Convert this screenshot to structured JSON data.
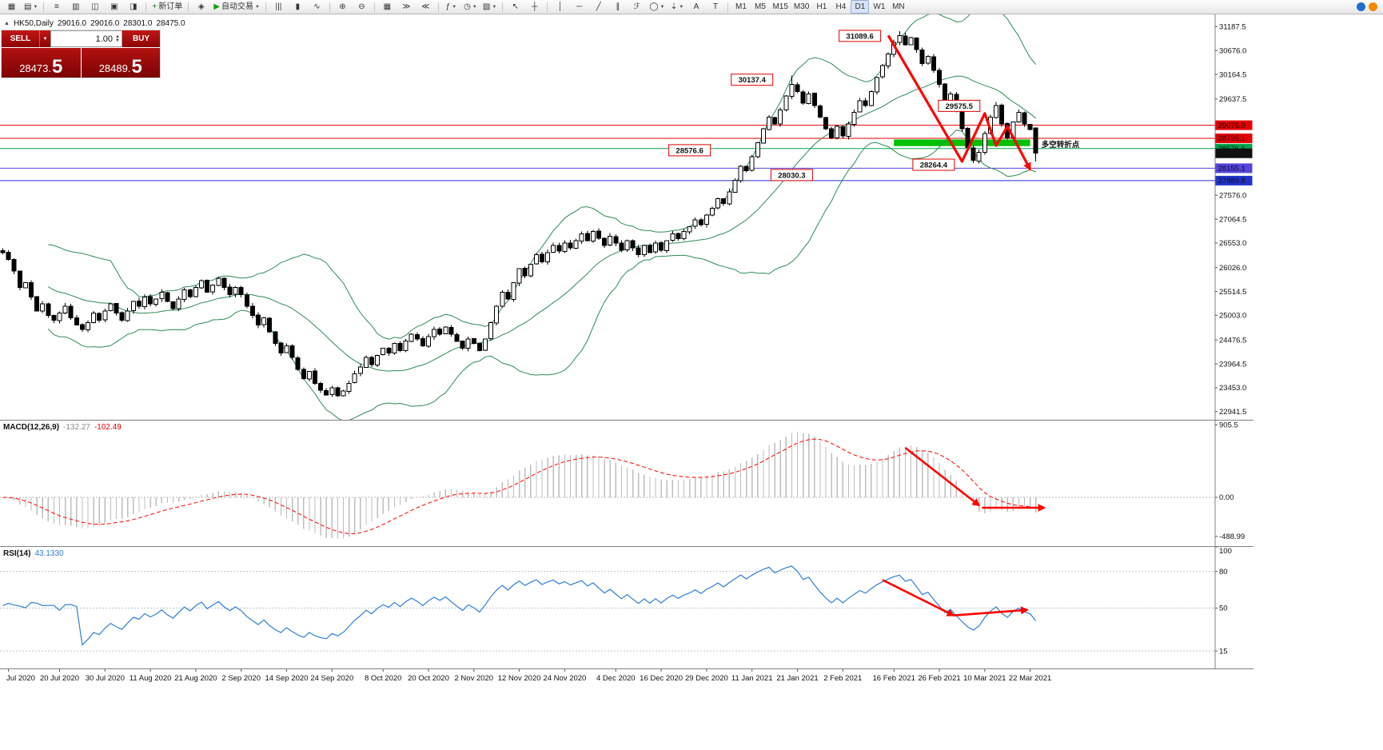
{
  "toolbar": {
    "items": [
      {
        "type": "button",
        "name": "new-chart-button",
        "glyph": "▦"
      },
      {
        "type": "button",
        "name": "profiles-button",
        "glyph": "▤",
        "caret": true
      },
      {
        "type": "sep"
      },
      {
        "type": "button",
        "name": "market-watch-button",
        "glyph": "≡"
      },
      {
        "type": "button",
        "name": "data-window-button",
        "glyph": "▥"
      },
      {
        "type": "button",
        "name": "navigator-button",
        "glyph": "◫"
      },
      {
        "type": "button",
        "name": "terminal-button",
        "glyph": "▣"
      },
      {
        "type": "button",
        "name": "strategy-tester-button",
        "glyph": "◨"
      },
      {
        "type": "sep"
      },
      {
        "type": "button",
        "name": "new-order-button",
        "glyph": "+",
        "glyph_color": "#0a7a0a",
        "label": "新订单"
      },
      {
        "type": "sep"
      },
      {
        "type": "button",
        "name": "metaeditor-button",
        "glyph": "◈"
      },
      {
        "type": "button",
        "name": "auto-trading-button",
        "glyph": "▶",
        "glyph_color": "#13a013",
        "label": "自动交易",
        "caret": true
      },
      {
        "type": "sep"
      },
      {
        "type": "button",
        "name": "bars-chart-button",
        "glyph": "|||"
      },
      {
        "type": "button",
        "name": "candlestick-chart-button",
        "glyph": "▮"
      },
      {
        "type": "button",
        "name": "line-chart-button",
        "glyph": "∿"
      },
      {
        "type": "sep"
      },
      {
        "type": "button",
        "name": "zoom-in-button",
        "glyph": "⊕"
      },
      {
        "type": "button",
        "name": "zoom-out-button",
        "glyph": "⊖"
      },
      {
        "type": "sep"
      },
      {
        "type": "button",
        "name": "tile-windows-button",
        "glyph": "▦"
      },
      {
        "type": "button",
        "name": "auto-scroll-button",
        "glyph": "≫"
      },
      {
        "type": "button",
        "name": "chart-shift-button",
        "glyph": "≪"
      },
      {
        "type": "sep"
      },
      {
        "type": "button",
        "name": "indicators-button",
        "glyph": "ƒ",
        "caret": true
      },
      {
        "type": "button",
        "name": "periods-button",
        "glyph": "◷",
        "caret": true
      },
      {
        "type": "button",
        "name": "templates-button",
        "glyph": "▧",
        "caret": true
      },
      {
        "type": "sep"
      },
      {
        "type": "button",
        "name": "cursor-button",
        "glyph": "↖"
      },
      {
        "type": "button",
        "name": "crosshair-button",
        "glyph": "┼"
      },
      {
        "type": "sep"
      },
      {
        "type": "button",
        "name": "vertical-line-button",
        "glyph": "│"
      },
      {
        "type": "button",
        "name": "horizontal-line-button",
        "glyph": "─"
      },
      {
        "type": "button",
        "name": "trendline-button",
        "glyph": "╱"
      },
      {
        "type": "button",
        "name": "equidistant-channel-button",
        "glyph": "∥"
      },
      {
        "type": "button",
        "name": "fibonacci-button",
        "glyph": "ℱ"
      },
      {
        "type": "button",
        "name": "shapes-button",
        "glyph": "◯",
        "caret": true
      },
      {
        "type": "button",
        "name": "arrows-button",
        "glyph": "⇣",
        "caret": true
      },
      {
        "type": "button",
        "name": "text-button",
        "glyph": "A"
      },
      {
        "type": "button",
        "name": "text-label-button",
        "glyph": "T"
      },
      {
        "type": "sep"
      },
      {
        "type": "button",
        "name": "timeframe-m1-button",
        "label": "M1"
      },
      {
        "type": "button",
        "name": "timeframe-m5-button",
        "label": "M5"
      },
      {
        "type": "button",
        "name": "timeframe-m15-button",
        "label": "M15"
      },
      {
        "type": "button",
        "name": "timeframe-m30-button",
        "label": "M30"
      },
      {
        "type": "button",
        "name": "timeframe-h1-button",
        "label": "H1"
      },
      {
        "type": "button",
        "name": "timeframe-h4-button",
        "label": "H4"
      },
      {
        "type": "button",
        "name": "timeframe-d1-button",
        "label": "D1",
        "active": true
      },
      {
        "type": "button",
        "name": "timeframe-w1-button",
        "label": "W1"
      },
      {
        "type": "button",
        "name": "timeframe-mn-button",
        "label": "MN"
      }
    ],
    "right_items": [
      {
        "name": "community-icon-button",
        "color": "#1f6fd0"
      },
      {
        "name": "notifications-icon-button",
        "color": "#f08a00"
      }
    ]
  },
  "symbol_line": {
    "icon": "▲",
    "text": "HK50,Daily",
    "open": "29016.0",
    "high": "29016.0",
    "low": "28301.0",
    "close": "28475.0"
  },
  "one_click": {
    "sell_label": "SELL",
    "buy_label": "BUY",
    "volume": "1.00",
    "sell_price_main": "28473.",
    "sell_price_big": "5",
    "buy_price_main": "28489.",
    "buy_price_big": "5"
  },
  "panels": {
    "macd": {
      "name": "MACD(12,26,9)",
      "value_main": "-132.27",
      "value_signal": "-102.49"
    },
    "rsi": {
      "name": "RSI(14)",
      "value": "43.1330"
    }
  },
  "chart_data": {
    "type": "candlestick",
    "symbol": "HK50",
    "timeframe": "Daily",
    "ohlc_current": {
      "open": 29016.0,
      "high": 29016.0,
      "low": 28301.0,
      "close": 28475.0
    },
    "closes": [
      26350,
      26200,
      25950,
      25600,
      25700,
      25400,
      25100,
      25250,
      25000,
      24900,
      25050,
      25200,
      24950,
      24800,
      24700,
      24850,
      25050,
      24900,
      25100,
      25250,
      25050,
      24900,
      25100,
      25300,
      25200,
      25400,
      25250,
      25350,
      25500,
      25300,
      25150,
      25350,
      25550,
      25400,
      25600,
      25750,
      25500,
      25650,
      25800,
      25600,
      25450,
      25600,
      25450,
      25200,
      25000,
      24800,
      24950,
      24650,
      24400,
      24200,
      24350,
      24100,
      23850,
      23650,
      23800,
      23550,
      23400,
      23300,
      23450,
      23280,
      23380,
      23550,
      23750,
      23900,
      24100,
      23950,
      24150,
      24300,
      24200,
      24400,
      24250,
      24450,
      24600,
      24500,
      24350,
      24550,
      24700,
      24600,
      24750,
      24600,
      24450,
      24300,
      24500,
      24400,
      24250,
      24500,
      24850,
      25200,
      25500,
      25350,
      25700,
      26000,
      25850,
      26100,
      26300,
      26150,
      26350,
      26500,
      26380,
      26550,
      26450,
      26600,
      26750,
      26600,
      26800,
      26650,
      26500,
      26700,
      26550,
      26400,
      26600,
      26450,
      26300,
      26500,
      26350,
      26550,
      26400,
      26600,
      26750,
      26650,
      26800,
      26900,
      27050,
      26950,
      27150,
      27300,
      27500,
      27400,
      27650,
      27900,
      28200,
      28100,
      28400,
      28700,
      29000,
      29250,
      29100,
      29400,
      29700,
      29950,
      29800,
      29550,
      29750,
      29500,
      29250,
      29000,
      28800,
      29050,
      28850,
      29100,
      29350,
      29600,
      29500,
      29800,
      30100,
      30350,
      30600,
      30850,
      31000,
      30800,
      30950,
      30700,
      30400,
      30550,
      30250,
      29950,
      29600,
      29750,
      29400,
      29000,
      28600,
      28320,
      28500,
      28900,
      29250,
      29500,
      29100,
      28800,
      29150,
      29350,
      29100,
      28980,
      28475
    ],
    "overrides": {
      "139": {
        "high": 30137.4
      },
      "158": {
        "high": 31089.6
      },
      "171": {
        "low": 28264.4
      },
      "175": {
        "high": 29575.5
      },
      "182": {
        "open": 29016.0,
        "high": 29016.0,
        "low": 28301.0,
        "close": 28475.0
      }
    },
    "bollinger": {
      "period": 20,
      "deviation": 2,
      "color": "#2e8b57"
    },
    "price_axis": {
      "min_price": 22750,
      "max_price": 31450,
      "ticks": [
        31187.5,
        30676.0,
        30164.5,
        29637.5,
        27576.0,
        27064.5,
        26553.0,
        26026.0,
        25514.5,
        25003.0,
        24476.5,
        23964.5,
        23453.0,
        22941.5
      ]
    },
    "hlines": [
      {
        "price": 29076.0,
        "tag": "29076.0",
        "color": "#e60000"
      },
      {
        "price": 28795.1,
        "tag": "28795.1",
        "color": "#e60000"
      },
      {
        "price": 28576.6,
        "tag": "28576.6",
        "color": "#00a651"
      },
      {
        "price": 28155.1,
        "tag": "28155.1",
        "color": "#5544dd"
      },
      {
        "price": 27889.8,
        "tag": "27889.8",
        "color": "#2233cc"
      }
    ],
    "current_price_tag": {
      "price": 28475.0,
      "text": "28475.0",
      "color": "#111111"
    },
    "green_zone": {
      "from_index": 157,
      "to_index": 181,
      "price_top": 28770,
      "price_bottom": 28630,
      "color": "#00c000"
    },
    "price_labels": [
      {
        "text": "31089.6",
        "index": 151,
        "price": 30990
      },
      {
        "text": "30137.4",
        "index": 132,
        "price": 30050
      },
      {
        "text": "29575.5",
        "index": 168.5,
        "price": 29490
      },
      {
        "text": "28576.6",
        "index": 121,
        "price": 28540
      },
      {
        "text": "28264.4",
        "index": 164,
        "price": 28230
      },
      {
        "text": "28030.3",
        "index": 139,
        "price": 28010
      }
    ],
    "annotation_text": {
      "text": "多空转折点",
      "index": 183,
      "price": 28690,
      "color": "#00b050"
    },
    "main_arrow": {
      "color": "#ff0000",
      "points": [
        [
          156,
          31000
        ],
        [
          169,
          28300
        ],
        [
          173,
          29330
        ],
        [
          175,
          28640
        ],
        [
          177,
          29050
        ],
        [
          181,
          28130
        ]
      ]
    },
    "macd_scale": {
      "min": -620,
      "max": 960
    },
    "macd_axis": [
      {
        "value": 905.5,
        "label": "905.5"
      },
      {
        "value": 0,
        "label": "0.00"
      },
      {
        "value": -488.99,
        "label": "-488.99"
      }
    ],
    "macd_arrows": [
      {
        "points": [
          [
            159,
            620
          ],
          [
            172,
            -100
          ]
        ]
      },
      {
        "points": [
          [
            172.5,
            -130
          ],
          [
            183.5,
            -130
          ]
        ]
      }
    ],
    "rsi_scale": {
      "min": 0,
      "max": 100
    },
    "rsi_axis": [
      {
        "value": 100,
        "label": "100"
      },
      {
        "value": 80,
        "label": "80"
      },
      {
        "value": 50,
        "label": "50"
      },
      {
        "value": 15,
        "label": "15"
      }
    ],
    "rsi_levels": [
      80,
      50,
      15
    ],
    "rsi_arrows": [
      {
        "points": [
          [
            155,
            73
          ],
          [
            167.5,
            44
          ]
        ]
      },
      {
        "points": [
          [
            167.5,
            44
          ],
          [
            180.5,
            48.5
          ]
        ]
      }
    ],
    "time_axis": {
      "ticks": [
        {
          "index": 1,
          "label": "Jul 2020"
        },
        {
          "index": 10,
          "label": "20 Jul 2020"
        },
        {
          "index": 18,
          "label": "30 Jul 2020"
        },
        {
          "index": 26,
          "label": "11 Aug 2020"
        },
        {
          "index": 34,
          "label": "21 Aug 2020"
        },
        {
          "index": 42,
          "label": "2 Sep 2020"
        },
        {
          "index": 50,
          "label": "14 Sep 2020"
        },
        {
          "index": 58,
          "label": "24 Sep 2020"
        },
        {
          "index": 67,
          "label": "8 Oct 2020"
        },
        {
          "index": 75,
          "label": "20 Oct 2020"
        },
        {
          "index": 83,
          "label": "2 Nov 2020"
        },
        {
          "index": 91,
          "label": "12 Nov 2020"
        },
        {
          "index": 99,
          "label": "24 Nov 2020"
        },
        {
          "index": 108,
          "label": "4 Dec 2020"
        },
        {
          "index": 116,
          "label": "16 Dec 2020"
        },
        {
          "index": 124,
          "label": "29 Dec 2020"
        },
        {
          "index": 132,
          "label": "11 Jan 2021"
        },
        {
          "index": 140,
          "label": "21 Jan 2021"
        },
        {
          "index": 148,
          "label": "2 Feb 2021"
        },
        {
          "index": 157,
          "label": "16 Feb 2021"
        },
        {
          "index": 165,
          "label": "26 Feb 2021"
        },
        {
          "index": 173,
          "label": "10 Mar 2021"
        },
        {
          "index": 181,
          "label": "22 Mar 2021"
        }
      ]
    },
    "colors": {
      "candle_up": "#ffffff",
      "candle_down": "#000000",
      "candle_outline": "#000000",
      "macd_histogram": "#bdbdbd",
      "macd_signal": "#ff0000",
      "rsi_line": "#2f7ed8",
      "arrow": "#ff0000"
    }
  }
}
